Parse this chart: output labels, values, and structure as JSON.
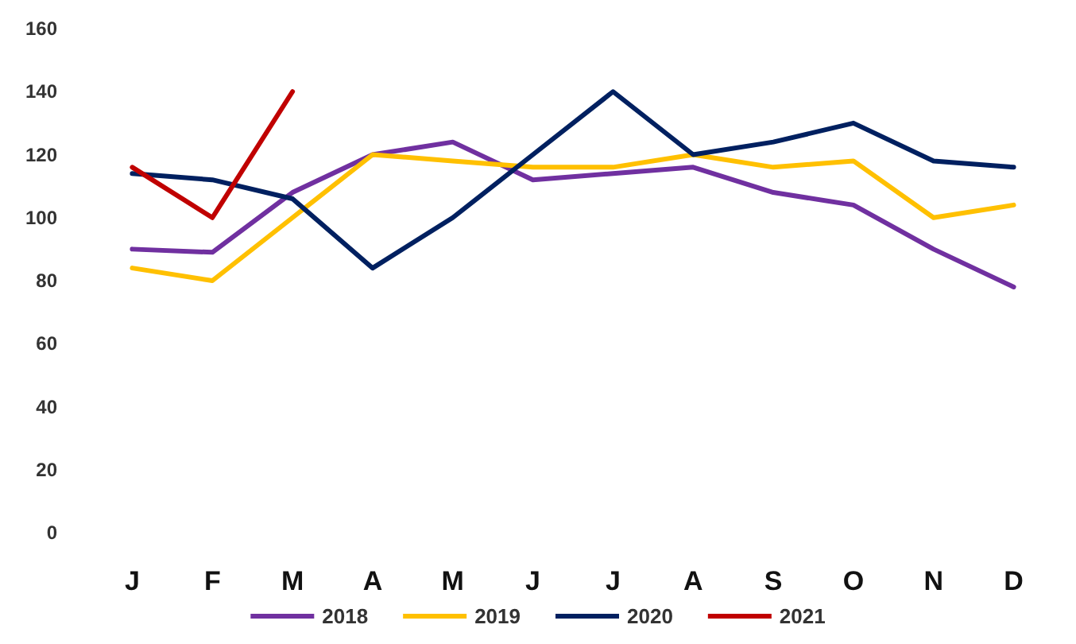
{
  "chart_data": {
    "type": "line",
    "categories": [
      "J",
      "F",
      "M",
      "A",
      "M",
      "J",
      "J",
      "A",
      "S",
      "O",
      "N",
      "D"
    ],
    "series": [
      {
        "name": "2018",
        "color": "#7030a0",
        "values": [
          90,
          89,
          108,
          120,
          124,
          112,
          114,
          116,
          108,
          104,
          90,
          78
        ]
      },
      {
        "name": "2019",
        "color": "#ffc000",
        "values": [
          84,
          80,
          100,
          120,
          118,
          116,
          116,
          120,
          116,
          118,
          100,
          104
        ]
      },
      {
        "name": "2020",
        "color": "#002060",
        "values": [
          114,
          112,
          106,
          84,
          100,
          120,
          140,
          120,
          124,
          130,
          118,
          116
        ]
      },
      {
        "name": "2021",
        "color": "#c00000",
        "values": [
          116,
          100,
          140,
          null,
          null,
          null,
          null,
          null,
          null,
          null,
          null,
          null
        ]
      }
    ],
    "ylim": [
      0,
      160
    ],
    "yticks": [
      0,
      20,
      40,
      60,
      80,
      100,
      120,
      140,
      160
    ],
    "grid": false,
    "legend": "bottom",
    "marker": "none",
    "line_style": "solid"
  }
}
